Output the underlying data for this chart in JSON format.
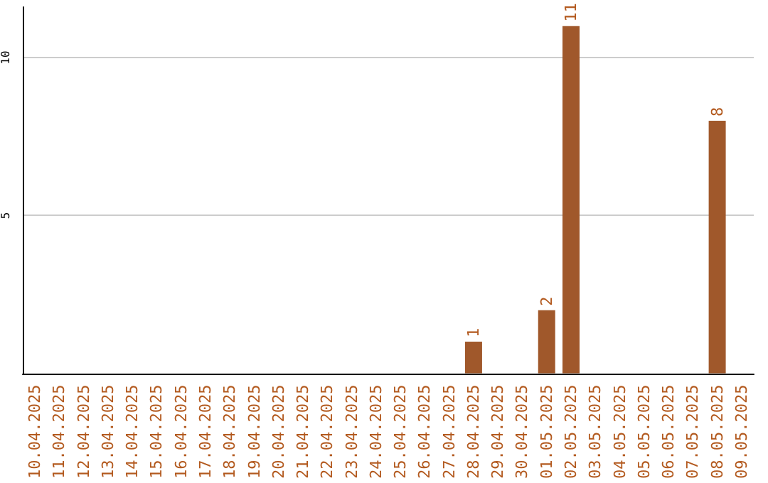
{
  "chart_data": {
    "type": "bar",
    "categories": [
      "10.04.2025",
      "11.04.2025",
      "12.04.2025",
      "13.04.2025",
      "14.04.2025",
      "15.04.2025",
      "16.04.2025",
      "17.04.2025",
      "18.04.2025",
      "19.04.2025",
      "20.04.2025",
      "21.04.2025",
      "22.04.2025",
      "23.04.2025",
      "24.04.2025",
      "25.04.2025",
      "26.04.2025",
      "27.04.2025",
      "28.04.2025",
      "29.04.2025",
      "30.04.2025",
      "01.05.2025",
      "02.05.2025",
      "03.05.2025",
      "04.05.2025",
      "05.05.2025",
      "06.05.2025",
      "07.05.2025",
      "08.05.2025",
      "09.05.2025"
    ],
    "values": [
      0,
      0,
      0,
      0,
      0,
      0,
      0,
      0,
      0,
      0,
      0,
      0,
      0,
      0,
      0,
      0,
      0,
      0,
      1,
      0,
      0,
      2,
      11,
      0,
      0,
      0,
      0,
      0,
      8,
      0
    ],
    "value_labels": [
      null,
      null,
      null,
      null,
      null,
      null,
      null,
      null,
      null,
      null,
      null,
      null,
      null,
      null,
      null,
      null,
      null,
      null,
      "1",
      null,
      null,
      "2",
      "11",
      null,
      null,
      null,
      null,
      null,
      "8",
      null
    ],
    "color": "#a0582b",
    "ylim": [
      0,
      11.6
    ],
    "yticks": [
      5,
      10
    ],
    "grid": "y"
  }
}
